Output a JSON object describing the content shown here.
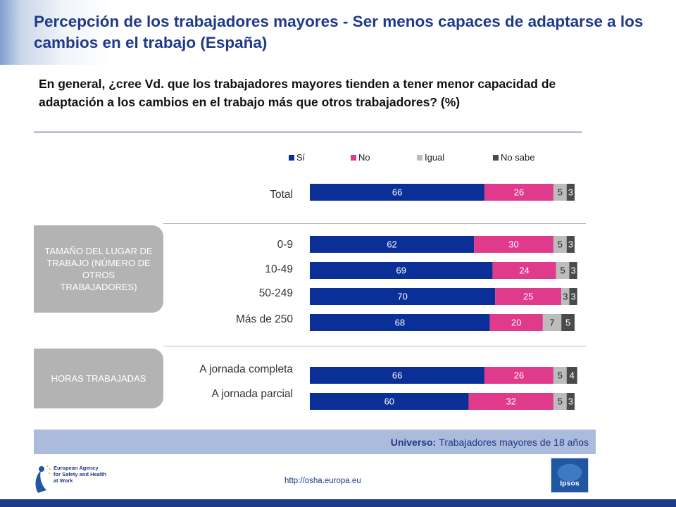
{
  "header": {
    "title": "Percepción de los trabajadores mayores - Ser menos capaces de adaptarse a los cambios en el trabajo (España)",
    "question": "En general, ¿cree Vd. que los trabajadores mayores tienden a tener menor capacidad de adaptación a los cambios en el trabajo más que otros trabajadores? (%)"
  },
  "groups": {
    "size": "TAMAÑO DEL LUGAR DE TRABAJO (NÚMERO DE OTROS TRABAJADORES)",
    "hours": "HORAS TRABAJADAS"
  },
  "footer": {
    "universe_label": "Universo:",
    "universe_text": "Trabajadores mayores de 18 años",
    "url": "http://osha.europa.eu",
    "agency_logo_icon": "eu-osha-logo",
    "ipsos_logo_icon": "ipsos-logo"
  },
  "colors": {
    "yes": "#0a2f96",
    "no": "#df3a8c",
    "equal": "#bcbcbc",
    "dont_know": "#4a4a4a",
    "title": "#1f3a88",
    "group_box": "#b3b3b3",
    "universe_bar": "#aabbdc"
  },
  "chart_data": {
    "type": "bar",
    "orientation": "horizontal",
    "stacked": true,
    "legend_position": "top",
    "xlim": [
      0,
      100
    ],
    "categories": [
      "Total",
      "0-9",
      "10-49",
      "50-249",
      "Más de 250",
      "A jornada completa",
      "A jornada parcial"
    ],
    "series": [
      {
        "name": "Sí",
        "values": [
          66,
          62,
          69,
          70,
          68,
          66,
          60
        ]
      },
      {
        "name": "No",
        "values": [
          26,
          30,
          24,
          25,
          20,
          26,
          32
        ]
      },
      {
        "name": "Igual",
        "values": [
          5,
          5,
          5,
          3,
          7,
          5,
          5
        ]
      },
      {
        "name": "No sabe",
        "values": [
          3,
          3,
          3,
          3,
          5,
          4,
          3
        ]
      }
    ]
  }
}
